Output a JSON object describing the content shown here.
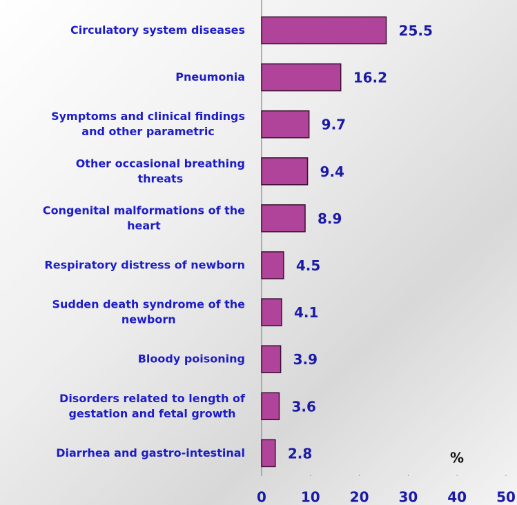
{
  "chart_data": {
    "type": "bar",
    "orientation": "horizontal",
    "categories": [
      [
        "Circulatory system diseases"
      ],
      [
        "Pneumonia"
      ],
      [
        "Symptoms and clinical findings",
        "and other parametric"
      ],
      [
        "Other occasional breathing",
        "threats"
      ],
      [
        "Congenital malformations of the",
        "heart"
      ],
      [
        "Respiratory distress of newborn"
      ],
      [
        "Sudden death syndrome of the",
        "newborn"
      ],
      [
        "Bloody poisoning"
      ],
      [
        "Disorders related to length of",
        "gestation and fetal growth"
      ],
      [
        "Diarrhea and gastro-intestinal"
      ]
    ],
    "values": [
      25.5,
      16.2,
      9.7,
      9.4,
      8.9,
      4.5,
      4.1,
      3.9,
      3.6,
      2.8
    ],
    "color": "#b0449a",
    "xlim": [
      0,
      50
    ],
    "xticks": [
      0,
      10,
      20,
      30,
      40,
      50
    ],
    "xlabel": "%"
  }
}
